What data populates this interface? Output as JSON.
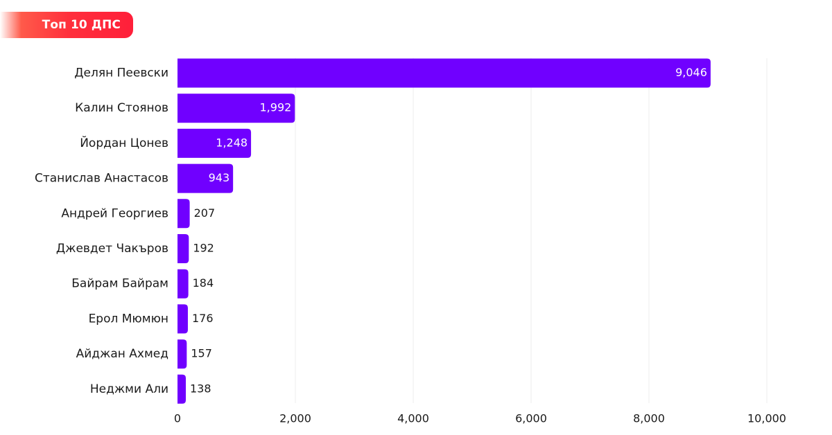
{
  "header": {
    "title": "Топ 10 ДПС"
  },
  "colors": {
    "bar": "#7000ff",
    "badge": "#ff2f3c",
    "grid": "#eeeeee",
    "label_inside": "#ffffff",
    "label_outside": "#1a1a1a"
  },
  "chart_data": {
    "type": "bar",
    "orientation": "horizontal",
    "categories": [
      "Делян Пеевски",
      "Калин Стоянов",
      "Йордан Цонев",
      "Станислав Анастасов",
      "Андрей Георгиев",
      "Джевдет Чакъров",
      "Байрам Байрам",
      "Ерол Мюмюн",
      "Айджан Ахмед",
      "Неджми Али"
    ],
    "values": [
      9046,
      1992,
      1248,
      943,
      207,
      192,
      184,
      176,
      157,
      138
    ],
    "value_labels": [
      "9,046",
      "1,992",
      "1,248",
      "943",
      "207",
      "192",
      "184",
      "176",
      "157",
      "138"
    ],
    "xlim": [
      0,
      10000
    ],
    "xticks": [
      0,
      2000,
      4000,
      6000,
      8000,
      10000
    ],
    "xtick_labels": [
      "0",
      "2,000",
      "4,000",
      "6,000",
      "8,000",
      "10,000"
    ],
    "title": "Топ 10 ДПС",
    "xlabel": "",
    "ylabel": "",
    "grid": true,
    "legend": "none"
  }
}
